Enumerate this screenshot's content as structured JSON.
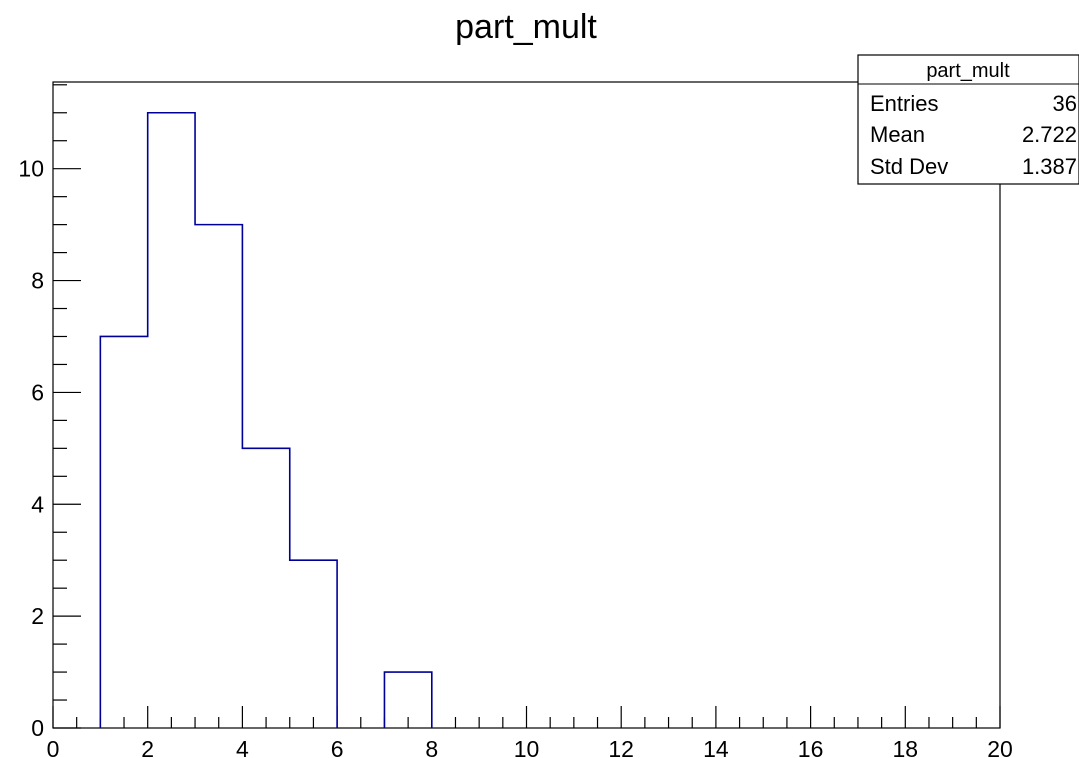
{
  "chart_data": {
    "type": "bar",
    "title": "part_mult",
    "xlabel": "",
    "ylabel": "",
    "xlim": [
      0,
      20
    ],
    "ylim": [
      0,
      11.55
    ],
    "bin_edges": [
      0,
      1,
      2,
      3,
      4,
      5,
      6,
      7,
      8,
      9,
      10,
      11,
      12,
      13,
      14,
      15,
      16,
      17,
      18,
      19,
      20
    ],
    "values": [
      0,
      7,
      11,
      9,
      5,
      3,
      0,
      1,
      0,
      0,
      0,
      0,
      0,
      0,
      0,
      0,
      0,
      0,
      0,
      0
    ],
    "x_ticks": [
      "0",
      "2",
      "4",
      "6",
      "8",
      "10",
      "12",
      "14",
      "16",
      "18",
      "20"
    ],
    "y_ticks": [
      "0",
      "2",
      "4",
      "6",
      "8",
      "10"
    ],
    "line_color": "#000099",
    "grid": false,
    "legend": {
      "placement": "top-right",
      "title": "part_mult",
      "rows": [
        {
          "label": "Entries",
          "value": "36"
        },
        {
          "label": "Mean",
          "value": "2.722"
        },
        {
          "label": "Std Dev",
          "value": "1.387"
        }
      ]
    }
  }
}
